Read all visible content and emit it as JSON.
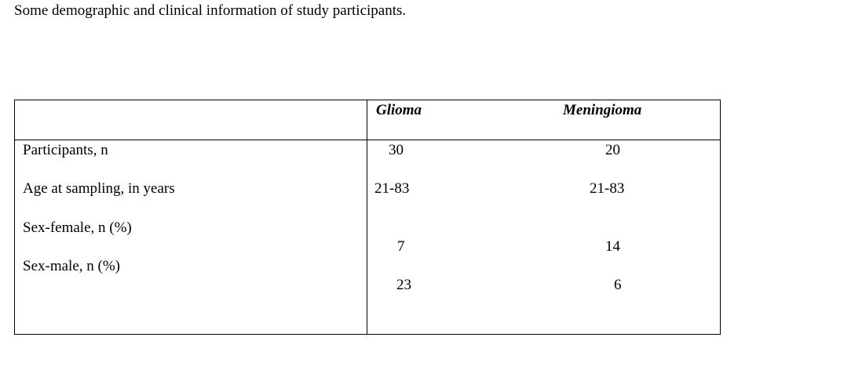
{
  "caption": "Some demographic and clinical information of study participants.",
  "table": {
    "columns": [
      "Glioma",
      "Meningioma"
    ],
    "rows": [
      {
        "label": "Participants, n",
        "values": [
          30,
          20
        ]
      },
      {
        "label": "Age at sampling, in years",
        "values": [
          "21-83",
          "21-83"
        ]
      },
      {
        "label": "Sex-female, n (%)",
        "values": [
          7,
          14
        ]
      },
      {
        "label": "Sex-male, n (%)",
        "values": [
          23,
          6
        ]
      }
    ]
  }
}
